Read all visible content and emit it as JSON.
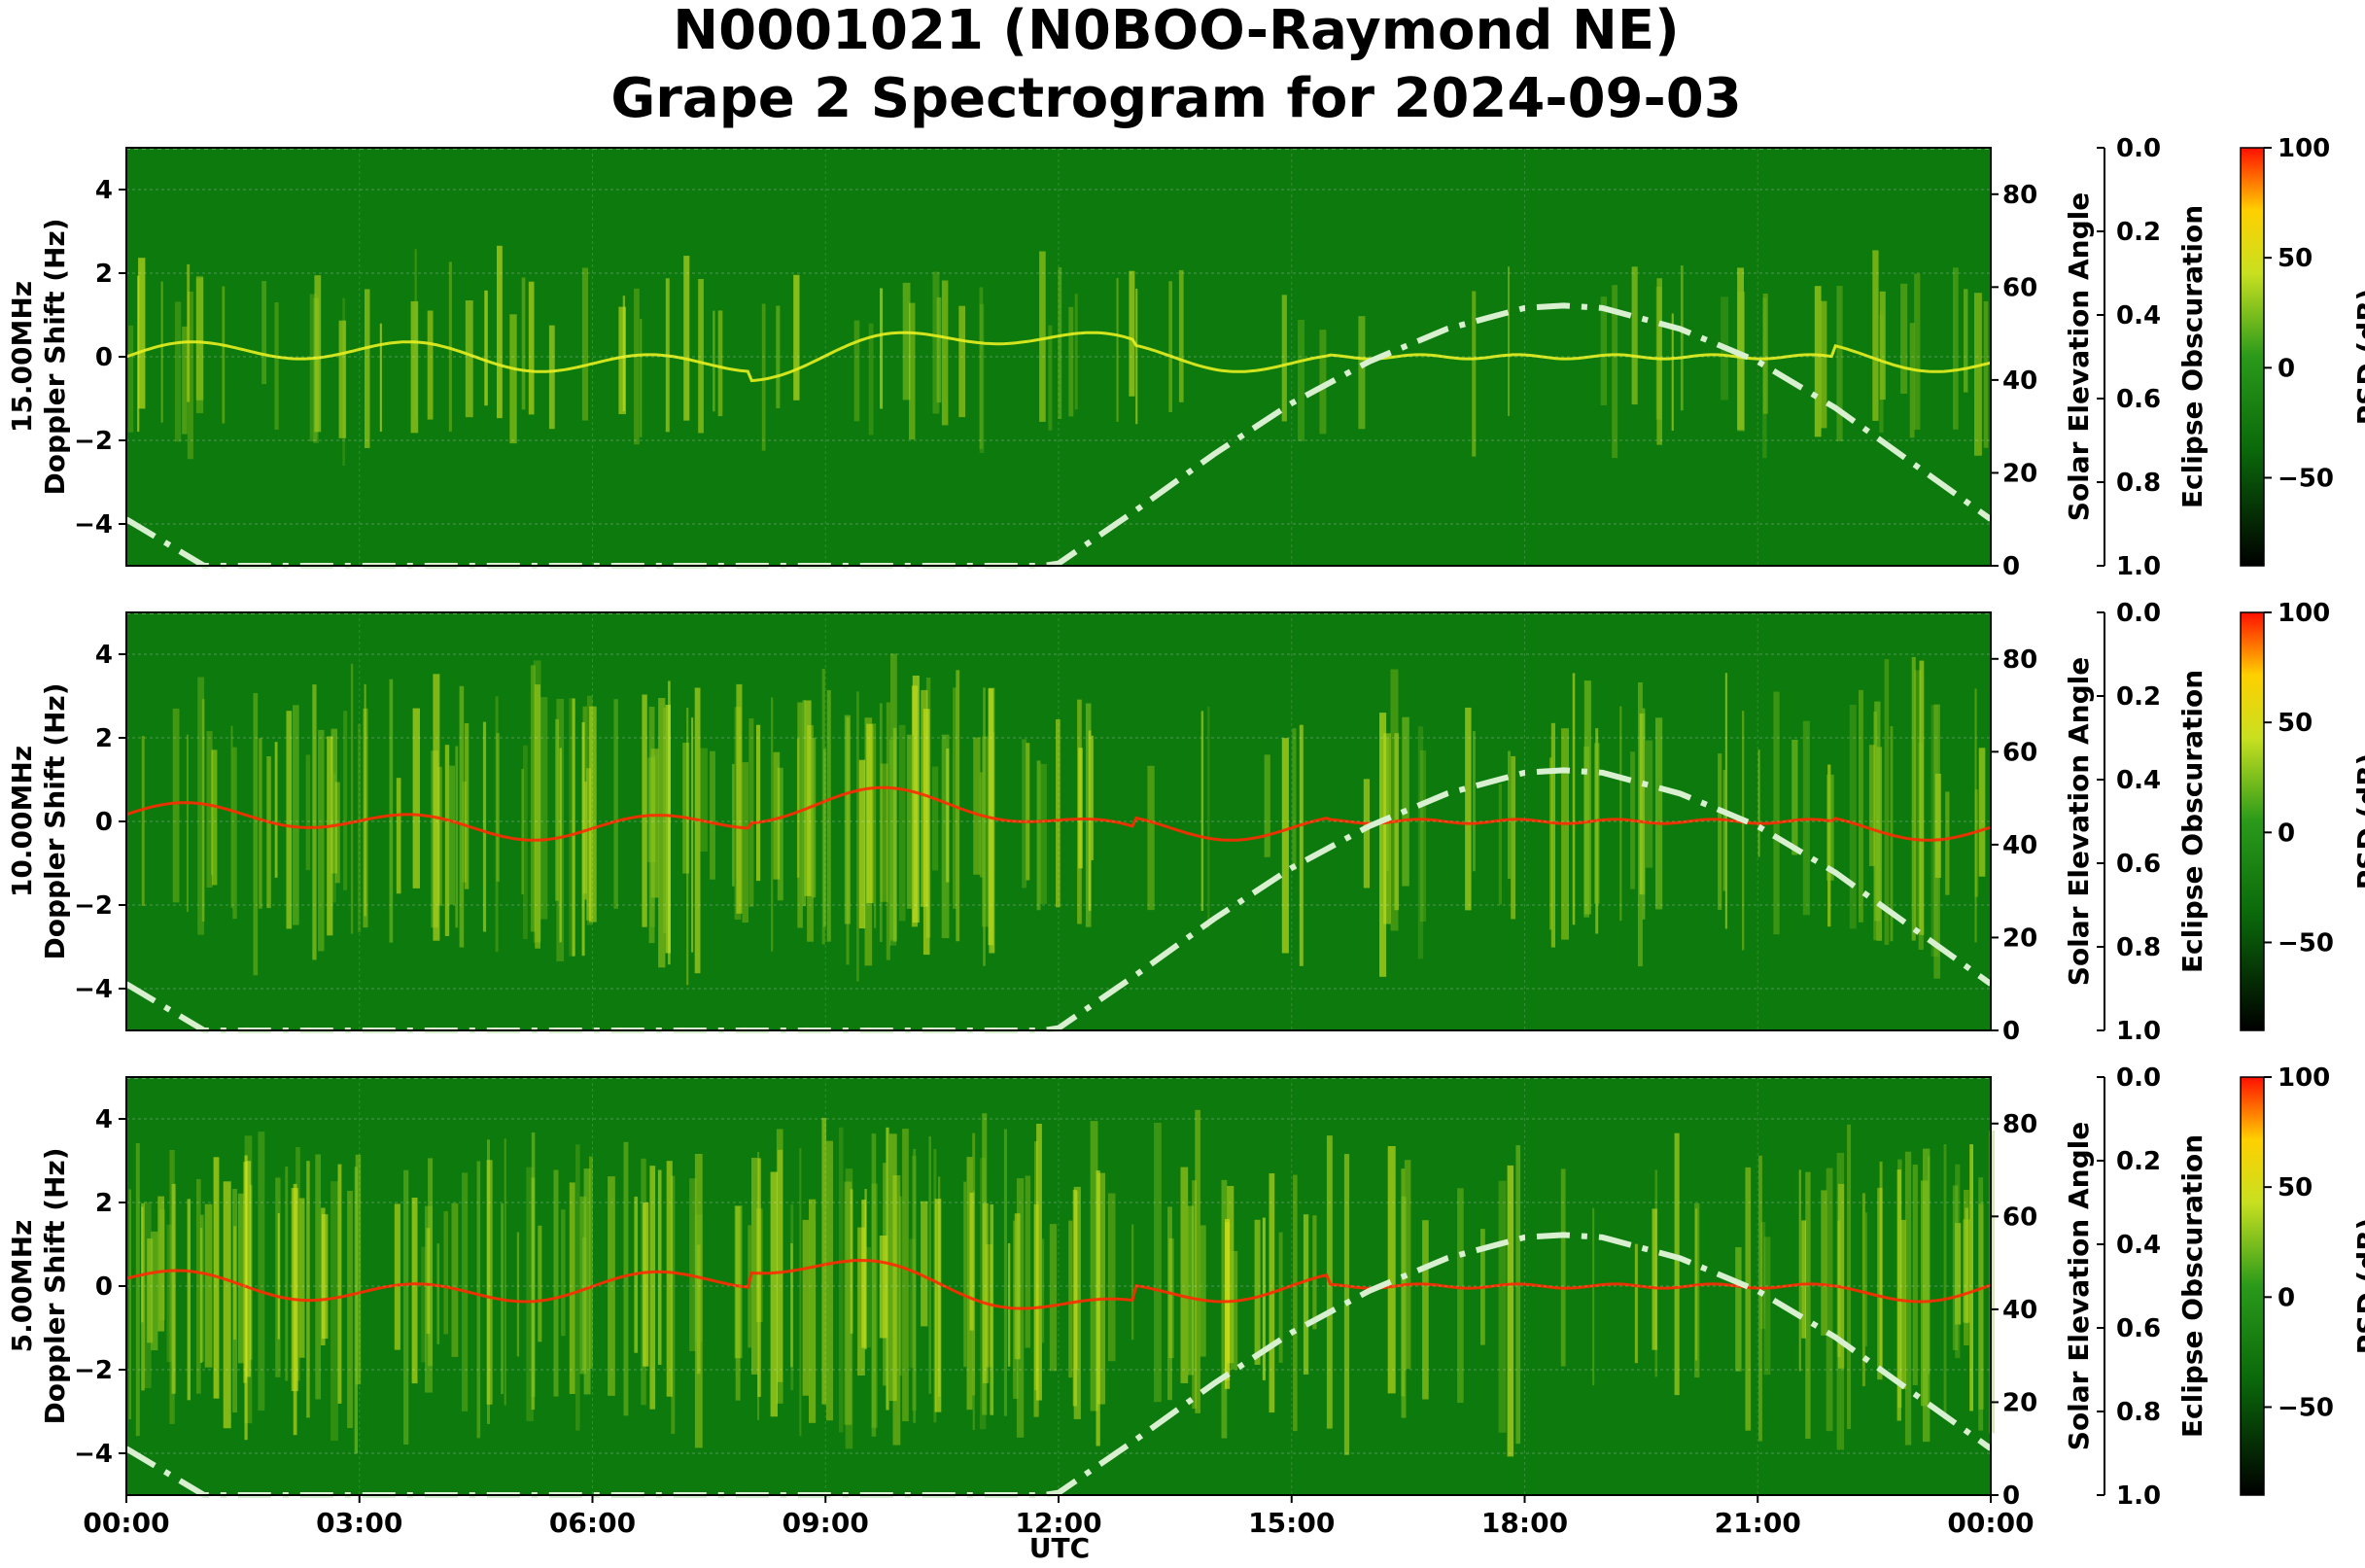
{
  "title_line1": "N0001021 (N0BOO-Raymond NE)",
  "title_line2": "Grape 2 Spectrogram for 2024-09-03",
  "colors": {
    "background_green": "#0d7a0d",
    "signal_yellow": "#e8f020",
    "signal_red": "#ff2a00",
    "solar_curve": "#d8f0d0"
  },
  "chart_data": [
    {
      "type": "heatmap",
      "panel": "15.00MHz",
      "ylabel": "15.00MHz\nDoppler Shift (Hz)",
      "ylim": [
        -5,
        5
      ],
      "yticks": [
        "4",
        "2",
        "0",
        "−2",
        "−4"
      ],
      "right_axis_label": "Solar Elevation Angle",
      "right_ylim": [
        0,
        90
      ],
      "right_yticks": [
        "0",
        "20",
        "40",
        "60",
        "80"
      ],
      "eclipse_label": "Eclipse Obscuration",
      "eclipse_ylim": [
        1.0,
        0.0
      ],
      "eclipse_ticks": [
        "0.0",
        "0.2",
        "0.4",
        "0.6",
        "0.8",
        "1.0"
      ],
      "colorbar_label": "PSD (dB)",
      "colorbar_ticks": [
        "100",
        "50",
        "0",
        "−50"
      ],
      "activity_level": 0.25,
      "red_carrier": false,
      "grid": true
    },
    {
      "type": "heatmap",
      "panel": "10.00MHz",
      "ylabel": "10.00MHz\nDoppler Shift (Hz)",
      "ylim": [
        -5,
        5
      ],
      "yticks": [
        "4",
        "2",
        "0",
        "−2",
        "−4"
      ],
      "right_axis_label": "Solar Elevation Angle",
      "right_ylim": [
        0,
        90
      ],
      "right_yticks": [
        "0",
        "20",
        "40",
        "60",
        "80"
      ],
      "eclipse_label": "Eclipse Obscuration",
      "eclipse_ylim": [
        1.0,
        0.0
      ],
      "eclipse_ticks": [
        "0.0",
        "0.2",
        "0.4",
        "0.6",
        "0.8",
        "1.0"
      ],
      "colorbar_label": "PSD (dB)",
      "colorbar_ticks": [
        "100",
        "50",
        "0",
        "−50"
      ],
      "activity_level": 0.65,
      "red_carrier": true,
      "grid": true
    },
    {
      "type": "heatmap",
      "panel": "5.00MHz",
      "ylabel": "5.00MHz\nDoppler Shift (Hz)",
      "ylim": [
        -5,
        5
      ],
      "yticks": [
        "4",
        "2",
        "0",
        "−2",
        "−4"
      ],
      "right_axis_label": "Solar Elevation Angle",
      "right_ylim": [
        0,
        90
      ],
      "right_yticks": [
        "0",
        "20",
        "40",
        "60",
        "80"
      ],
      "eclipse_label": "Eclipse Obscuration",
      "eclipse_ylim": [
        1.0,
        0.0
      ],
      "eclipse_ticks": [
        "0.0",
        "0.2",
        "0.4",
        "0.6",
        "0.8",
        "1.0"
      ],
      "colorbar_label": "PSD (dB)",
      "colorbar_ticks": [
        "100",
        "50",
        "0",
        "−50"
      ],
      "activity_level": 0.7,
      "red_carrier": true,
      "grid": true
    }
  ],
  "x_axis": {
    "label": "UTC",
    "ticks": [
      "00:00",
      "03:00",
      "06:00",
      "09:00",
      "12:00",
      "15:00",
      "18:00",
      "21:00",
      "00:00"
    ],
    "range_hours": [
      0,
      24
    ]
  },
  "solar_elevation_curve": {
    "hours": [
      0,
      0.5,
      1,
      11.8,
      12,
      13,
      14,
      15,
      16,
      17,
      18,
      18.5,
      19,
      20,
      21,
      22,
      23,
      24
    ],
    "degrees": [
      10,
      5,
      0,
      0,
      0.5,
      12,
      24,
      35,
      44,
      51,
      55.5,
      56,
      55.5,
      51,
      44,
      34,
      22,
      10
    ]
  }
}
